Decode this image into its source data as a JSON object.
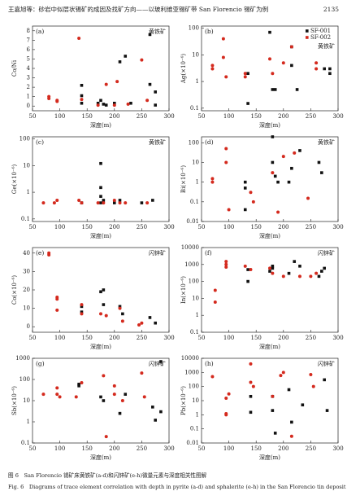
{
  "header": {
    "title": "王嘉旭等：砂岩中似层状锡矿的成因及找矿方向——以玻利维亚锡矿带 San Florencio 锡矿为例",
    "page": "2135"
  },
  "chart_data": [
    {
      "type": "scatter",
      "title": "(a)",
      "annotation": "黄铁矿",
      "x_label": "深度(m)",
      "y_label": "Co/Ni",
      "xlim": [
        50,
        300
      ],
      "xticks": [
        50,
        100,
        150,
        200,
        250,
        300
      ],
      "ylim": [
        -0.5,
        8.5
      ],
      "yticks": [
        0,
        1,
        2,
        3,
        4,
        5,
        6,
        7,
        8
      ],
      "log_y": false,
      "series": [
        {
          "color": "#111111",
          "marker": "square",
          "x": [
            140,
            140,
            140,
            170,
            175,
            180,
            185,
            200,
            210,
            220,
            230,
            265,
            265,
            275,
            275
          ],
          "values": [
            1.1,
            0.3,
            2.2,
            0.3,
            0.6,
            0.2,
            0.1,
            0.3,
            4.7,
            5.3,
            0.3,
            7.6,
            2.3,
            1.5,
            0.1
          ]
        },
        {
          "color": "#d42a1e",
          "marker": "circle",
          "x": [
            80,
            80,
            95,
            95,
            135,
            140,
            170,
            185,
            200,
            205,
            225,
            250,
            260
          ],
          "values": [
            0.8,
            1,
            0.5,
            0.6,
            7.2,
            0.7,
            0.1,
            2.3,
            0.1,
            2.6,
            0.2,
            4.9,
            0.6
          ]
        }
      ]
    },
    {
      "type": "scatter",
      "title": "(b)",
      "annotation": "黄铁矿",
      "x_label": "深度(m)",
      "y_label": "Ag(×10⁻⁶)",
      "xlim": [
        50,
        300
      ],
      "xticks": [
        50,
        100,
        150,
        200,
        250,
        300
      ],
      "ylim": [
        0.08,
        120
      ],
      "yticks": [
        0.1,
        1,
        10,
        100
      ],
      "log_y": true,
      "series": [
        {
          "name": "SF-001",
          "color": "#111111",
          "marker": "square",
          "x": [
            135,
            135,
            175,
            180,
            185,
            215,
            225,
            275,
            285,
            285,
            215
          ],
          "values": [
            0.15,
            2,
            70,
            0.5,
            0.5,
            20,
            0.5,
            3,
            2,
            3,
            4
          ]
        },
        {
          "name": "SF-002",
          "color": "#d42a1e",
          "marker": "circle",
          "x": [
            70,
            70,
            90,
            90,
            95,
            130,
            130,
            175,
            180,
            200,
            215,
            260,
            260
          ],
          "values": [
            3,
            4,
            40,
            8,
            1.5,
            1.5,
            2,
            7,
            2,
            5,
            20,
            5,
            3
          ]
        }
      ]
    },
    {
      "type": "scatter",
      "title": "(c)",
      "annotation": "黄铁矿",
      "x_label": "深度(m)",
      "y_label": "Ge(×10⁻⁶)",
      "xlim": [
        50,
        300
      ],
      "xticks": [
        50,
        100,
        150,
        200,
        250,
        300
      ],
      "ylim": [
        0.08,
        120
      ],
      "yticks": [
        0.1,
        1,
        10,
        100
      ],
      "log_y": true,
      "series": [
        {
          "color": "#111111",
          "marker": "square",
          "x": [
            140,
            175,
            175,
            175,
            180,
            200,
            210,
            250,
            270,
            175
          ],
          "values": [
            0.4,
            12,
            1.5,
            0.7,
            0.5,
            0.4,
            0.5,
            0.4,
            0.5,
            0.4
          ]
        },
        {
          "color": "#d42a1e",
          "marker": "circle",
          "x": [
            70,
            90,
            95,
            135,
            140,
            170,
            180,
            200,
            210,
            220,
            260
          ],
          "values": [
            0.4,
            0.4,
            0.5,
            0.5,
            0.4,
            0.4,
            0.4,
            0.5,
            0.4,
            0.4,
            0.4
          ]
        }
      ]
    },
    {
      "type": "scatter",
      "title": "(d)",
      "annotation": "黄铁矿",
      "x_label": "深度(m)",
      "y_label": "Bi(×10⁻⁶)",
      "xlim": [
        50,
        300
      ],
      "xticks": [
        50,
        100,
        150,
        200,
        250,
        300
      ],
      "ylim": [
        0.01,
        200
      ],
      "yticks": [
        0.01,
        0.1,
        1,
        10,
        100
      ],
      "log_y": true,
      "series": [
        {
          "color": "#111111",
          "marker": "square",
          "x": [
            130,
            130,
            130,
            180,
            180,
            185,
            190,
            210,
            215,
            230,
            265,
            270
          ],
          "values": [
            0.04,
            0.5,
            1,
            200,
            10,
            2,
            1,
            1,
            5,
            40,
            10,
            3
          ]
        },
        {
          "color": "#d42a1e",
          "marker": "circle",
          "x": [
            70,
            70,
            95,
            95,
            100,
            140,
            145,
            180,
            190,
            200,
            220,
            245
          ],
          "values": [
            1,
            1.5,
            50,
            10,
            0.04,
            0.3,
            0.1,
            3,
            0.03,
            20,
            30,
            0.15
          ]
        }
      ]
    },
    {
      "type": "scatter",
      "title": "(e)",
      "annotation": "闪锌矿",
      "x_label": "深度(m)",
      "y_label": "Co(×10⁻⁶)",
      "xlim": [
        50,
        300
      ],
      "xticks": [
        50,
        100,
        150,
        200,
        250,
        300
      ],
      "ylim": [
        -3,
        43
      ],
      "yticks": [
        0,
        10,
        20,
        30,
        40
      ],
      "log_y": false,
      "series": [
        {
          "color": "#111111",
          "marker": "square",
          "x": [
            140,
            140,
            175,
            180,
            180,
            210,
            215,
            265,
            275
          ],
          "values": [
            8,
            11,
            19,
            20,
            12,
            11,
            7,
            5,
            2
          ]
        },
        {
          "color": "#d42a1e",
          "marker": "circle",
          "x": [
            80,
            80,
            95,
            95,
            95,
            140,
            140,
            175,
            185,
            210,
            215,
            245,
            250
          ],
          "values": [
            39,
            40,
            15,
            9,
            16,
            7,
            12,
            7,
            6,
            10,
            3,
            1,
            2
          ]
        }
      ]
    },
    {
      "type": "scatter",
      "title": "(f)",
      "annotation": "闪锌矿",
      "x_label": "深度(m)",
      "y_label": "In(×10⁻⁶)",
      "xlim": [
        50,
        300
      ],
      "xticks": [
        50,
        100,
        150,
        200,
        250,
        300
      ],
      "ylim": [
        0.1,
        10000
      ],
      "yticks": [
        0.1,
        1,
        10,
        100,
        1000,
        10000
      ],
      "log_y": true,
      "series": [
        {
          "color": "#111111",
          "marker": "square",
          "x": [
            135,
            135,
            175,
            180,
            180,
            210,
            220,
            230,
            265,
            270,
            275
          ],
          "values": [
            100,
            500,
            400,
            600,
            800,
            300,
            1500,
            800,
            200,
            400,
            600
          ]
        },
        {
          "color": "#d42a1e",
          "marker": "circle",
          "x": [
            75,
            75,
            95,
            95,
            95,
            130,
            140,
            175,
            180,
            200,
            230,
            250,
            260
          ],
          "values": [
            30,
            6,
            1000,
            1500,
            700,
            800,
            500,
            600,
            300,
            200,
            200,
            200,
            300
          ]
        }
      ]
    },
    {
      "type": "scatter",
      "title": "(g)",
      "annotation": "闪锌矿",
      "x_label": "深度(m)",
      "y_label": "Sb(×10⁻⁶)",
      "xlim": [
        50,
        300
      ],
      "xticks": [
        50,
        100,
        150,
        200,
        250,
        300
      ],
      "ylim": [
        0.1,
        1000
      ],
      "yticks": [
        0.1,
        1,
        10,
        100,
        1000
      ],
      "log_y": true,
      "series": [
        {
          "color": "#111111",
          "marker": "square",
          "x": [
            135,
            135,
            175,
            180,
            210,
            220,
            270,
            275,
            285,
            285
          ],
          "values": [
            60,
            50,
            15,
            10,
            2.5,
            20,
            5,
            1.2,
            700,
            3
          ]
        },
        {
          "color": "#d42a1e",
          "marker": "circle",
          "x": [
            70,
            95,
            95,
            100,
            130,
            140,
            180,
            185,
            200,
            200,
            215,
            250,
            255
          ],
          "values": [
            20,
            40,
            20,
            15,
            15,
            70,
            150,
            0.2,
            50,
            20,
            10,
            200,
            15
          ]
        }
      ]
    },
    {
      "type": "scatter",
      "title": "(h)",
      "annotation": "闪锌矿",
      "x_label": "深度(m)",
      "y_label": "Pb(×10⁻⁶)",
      "xlim": [
        50,
        300
      ],
      "xticks": [
        50,
        100,
        150,
        200,
        250,
        300
      ],
      "ylim": [
        0.01,
        10000
      ],
      "yticks": [
        0.01,
        0.1,
        1,
        10,
        100,
        1000,
        10000
      ],
      "log_y": true,
      "series": [
        {
          "color": "#111111",
          "marker": "square",
          "x": [
            140,
            140,
            180,
            180,
            185,
            210,
            215,
            235,
            275,
            280
          ],
          "values": [
            1.5,
            20,
            20,
            2,
            0.05,
            60,
            0.3,
            5,
            300,
            2
          ]
        },
        {
          "color": "#d42a1e",
          "marker": "circle",
          "x": [
            70,
            95,
            95,
            95,
            100,
            140,
            140,
            145,
            180,
            195,
            200,
            215,
            250,
            255
          ],
          "values": [
            500,
            1,
            1.2,
            15,
            30,
            4000,
            200,
            100,
            20,
            600,
            1000,
            0.03,
            700,
            100
          ]
        }
      ]
    }
  ],
  "caption": {
    "zh": "图 6　San Florencio 锡矿床黄铁矿(a-d)和闪锌矿(e-h)微量元素与深度相关性图解",
    "en": "Fig. 6　Diagrams of trace element correlation with depth in pyrite (a-d) and sphalerite (e-h) in the San Florencio tin deposit"
  }
}
